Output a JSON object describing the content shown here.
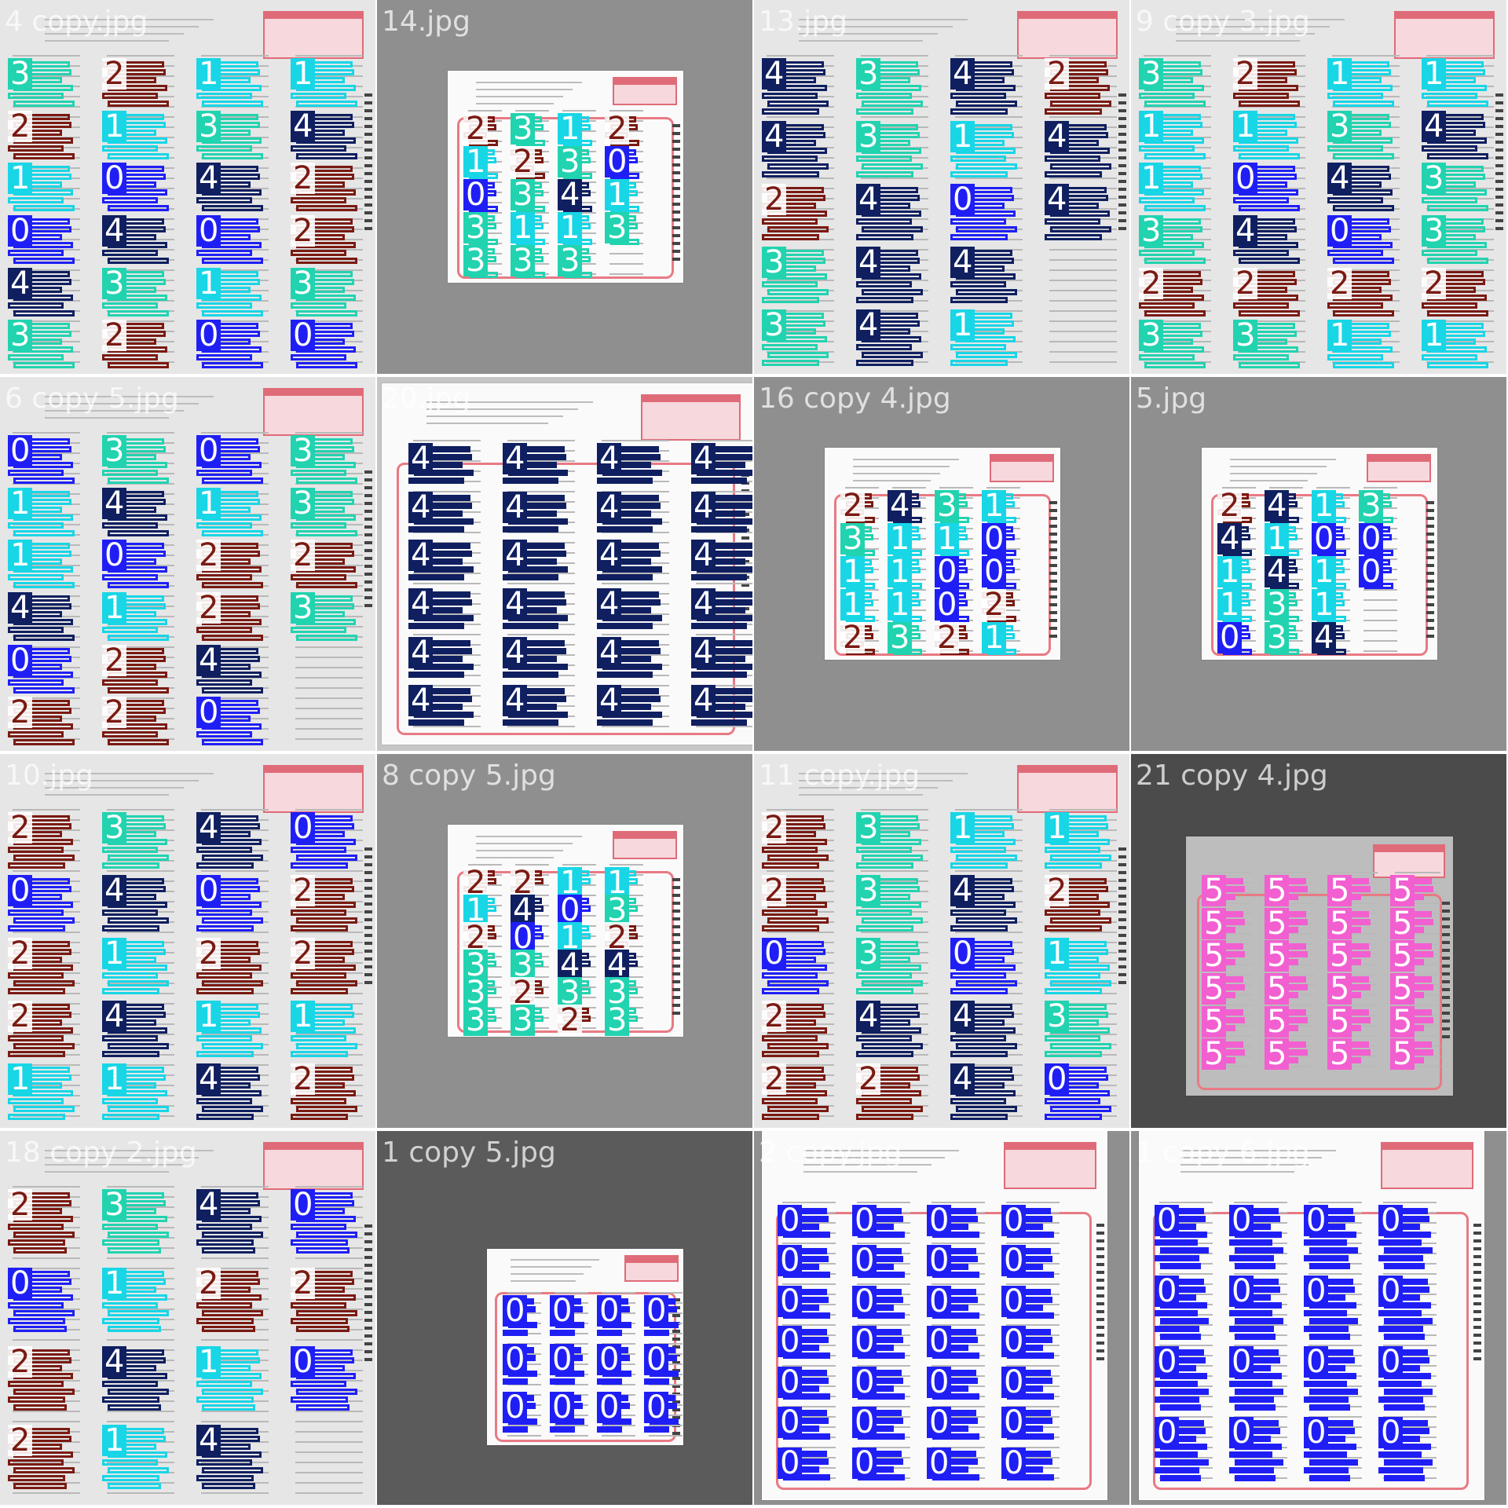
{
  "grid": {
    "tiles": [
      {
        "filename": "4 copy.jpg",
        "style": "zoom",
        "bg": "#cfcfcf",
        "labels": [
          "3",
          "2",
          "1",
          "0",
          "4",
          "3",
          "2",
          "1",
          "0",
          "4",
          "3",
          "2",
          "1",
          "3",
          "4",
          "0",
          "1",
          "0",
          "1",
          "4",
          "2",
          "2",
          "3",
          "0"
        ]
      },
      {
        "filename": "14.jpg",
        "style": "small",
        "bg": "#8f8f8f",
        "labels": [
          "2",
          "1",
          "0",
          "3",
          "3",
          "3",
          "2",
          "3",
          "1",
          "3",
          "1",
          "3",
          "4",
          "1",
          "3",
          "2",
          "0",
          "1",
          "3"
        ]
      },
      {
        "filename": "13.jpg",
        "style": "zoom",
        "bg": "#ededed",
        "labels": [
          "4",
          "4",
          "2",
          "3",
          "3",
          "3",
          "3",
          "4",
          "4",
          "4",
          "4",
          "1",
          "0",
          "4",
          "1",
          "2",
          "4",
          "4"
        ]
      },
      {
        "filename": "9 copy 3.jpg",
        "style": "zoom",
        "bg": "#d7d7d7",
        "labels": [
          "3",
          "1",
          "1",
          "3",
          "2",
          "3",
          "2",
          "1",
          "0",
          "4",
          "2",
          "3",
          "1",
          "3",
          "4",
          "0",
          "2",
          "1",
          "1",
          "4",
          "3",
          "3",
          "2",
          "1"
        ]
      },
      {
        "filename": "6 copy 5.jpg",
        "style": "zoom",
        "bg": "#cdcdcd",
        "labels": [
          "0",
          "1",
          "1",
          "4",
          "0",
          "2",
          "3",
          "4",
          "0",
          "1",
          "2",
          "2",
          "0",
          "1",
          "2",
          "2",
          "4",
          "0",
          "3",
          "3",
          "2",
          "3"
        ]
      },
      {
        "filename": "20.jpg",
        "style": "wide",
        "bg": "#c6c6c6",
        "labels": [
          "4",
          "4",
          "4",
          "4",
          "4",
          "4",
          "4",
          "4",
          "4",
          "4",
          "4",
          "4",
          "4",
          "4",
          "4",
          "4",
          "4",
          "4",
          "4",
          "4",
          "4",
          "4",
          "4",
          "4"
        ]
      },
      {
        "filename": "16 copy 4.jpg",
        "style": "small",
        "bg": "#8f8f8f",
        "labels": [
          "2",
          "3",
          "1",
          "1",
          "2",
          "4",
          "1",
          "1",
          "1",
          "3",
          "3",
          "1",
          "0",
          "0",
          "2",
          "1",
          "0",
          "0",
          "2",
          "1"
        ]
      },
      {
        "filename": "5.jpg",
        "style": "small",
        "bg": "#8f8f8f",
        "labels": [
          "2",
          "4",
          "1",
          "1",
          "0",
          "4",
          "1",
          "4",
          "3",
          "3",
          "1",
          "0",
          "1",
          "1",
          "4",
          "3",
          "0",
          "0"
        ]
      },
      {
        "filename": "10.jpg",
        "style": "zoom",
        "bg": "#d9d9d9",
        "labels": [
          "2",
          "0",
          "2",
          "2",
          "1",
          "3",
          "4",
          "1",
          "4",
          "1",
          "4",
          "0",
          "2",
          "1",
          "4",
          "0",
          "2",
          "2",
          "1",
          "2"
        ]
      },
      {
        "filename": "8 copy 5.jpg",
        "style": "small",
        "bg": "#8f8f8f",
        "labels": [
          "2",
          "1",
          "2",
          "3",
          "3",
          "3",
          "2",
          "4",
          "0",
          "3",
          "2",
          "3",
          "1",
          "0",
          "1",
          "4",
          "3",
          "2",
          "1",
          "3",
          "2",
          "4",
          "3",
          "3"
        ]
      },
      {
        "filename": "11 copy.jpg",
        "style": "zoom",
        "bg": "#d7d7d7",
        "labels": [
          "2",
          "2",
          "0",
          "2",
          "2",
          "3",
          "3",
          "3",
          "4",
          "2",
          "1",
          "4",
          "0",
          "4",
          "4",
          "1",
          "2",
          "1",
          "3",
          "0"
        ]
      },
      {
        "filename": "21 copy 4.jpg",
        "style": "pink",
        "bg": "#4b4b4b",
        "labels": [
          "5",
          "5",
          "5",
          "5",
          "5",
          "5",
          "5",
          "5",
          "5",
          "5",
          "5",
          "5",
          "5",
          "5",
          "5",
          "5",
          "5",
          "5",
          "5",
          "5",
          "5",
          "5",
          "5",
          "5"
        ]
      },
      {
        "filename": "18 copy 2.jpg",
        "style": "zoom",
        "bg": "#cdcdcd",
        "labels": [
          "2",
          "0",
          "2",
          "2",
          "3",
          "1",
          "4",
          "1",
          "4",
          "2",
          "1",
          "4",
          "0",
          "2",
          "0"
        ]
      },
      {
        "filename": "1 copy 5.jpg",
        "style": "blue-small",
        "bg": "#5b5b5b",
        "labels": [
          "0",
          "0",
          "0",
          "0",
          "0",
          "0",
          "0",
          "0",
          "0",
          "0",
          "0",
          "0"
        ]
      },
      {
        "filename": "2 copy.jpg",
        "style": "blue",
        "bg": "#8f8f8f",
        "labels": [
          "0",
          "0",
          "0",
          "0",
          "0",
          "0",
          "0",
          "0",
          "0",
          "0",
          "0",
          "0",
          "0",
          "0",
          "0",
          "0",
          "0",
          "0",
          "0",
          "0",
          "0",
          "0",
          "0",
          "0",
          "0",
          "0",
          "0",
          "0"
        ]
      },
      {
        "filename": "1 copy 6.jpg",
        "style": "blue",
        "bg": "#8f8f8f",
        "labels": [
          "0",
          "0",
          "0",
          "0",
          "0",
          "0",
          "0",
          "0",
          "0",
          "0",
          "0",
          "0",
          "0",
          "0",
          "0",
          "0"
        ]
      }
    ]
  },
  "colors": {
    "0": "#1f1ff5",
    "1": "#18d6e6",
    "2": "#7a1a12",
    "3": "#22d3b0",
    "4": "#0f1f60",
    "5": "#f25fd0",
    "sheet_red": "#e87a84"
  }
}
